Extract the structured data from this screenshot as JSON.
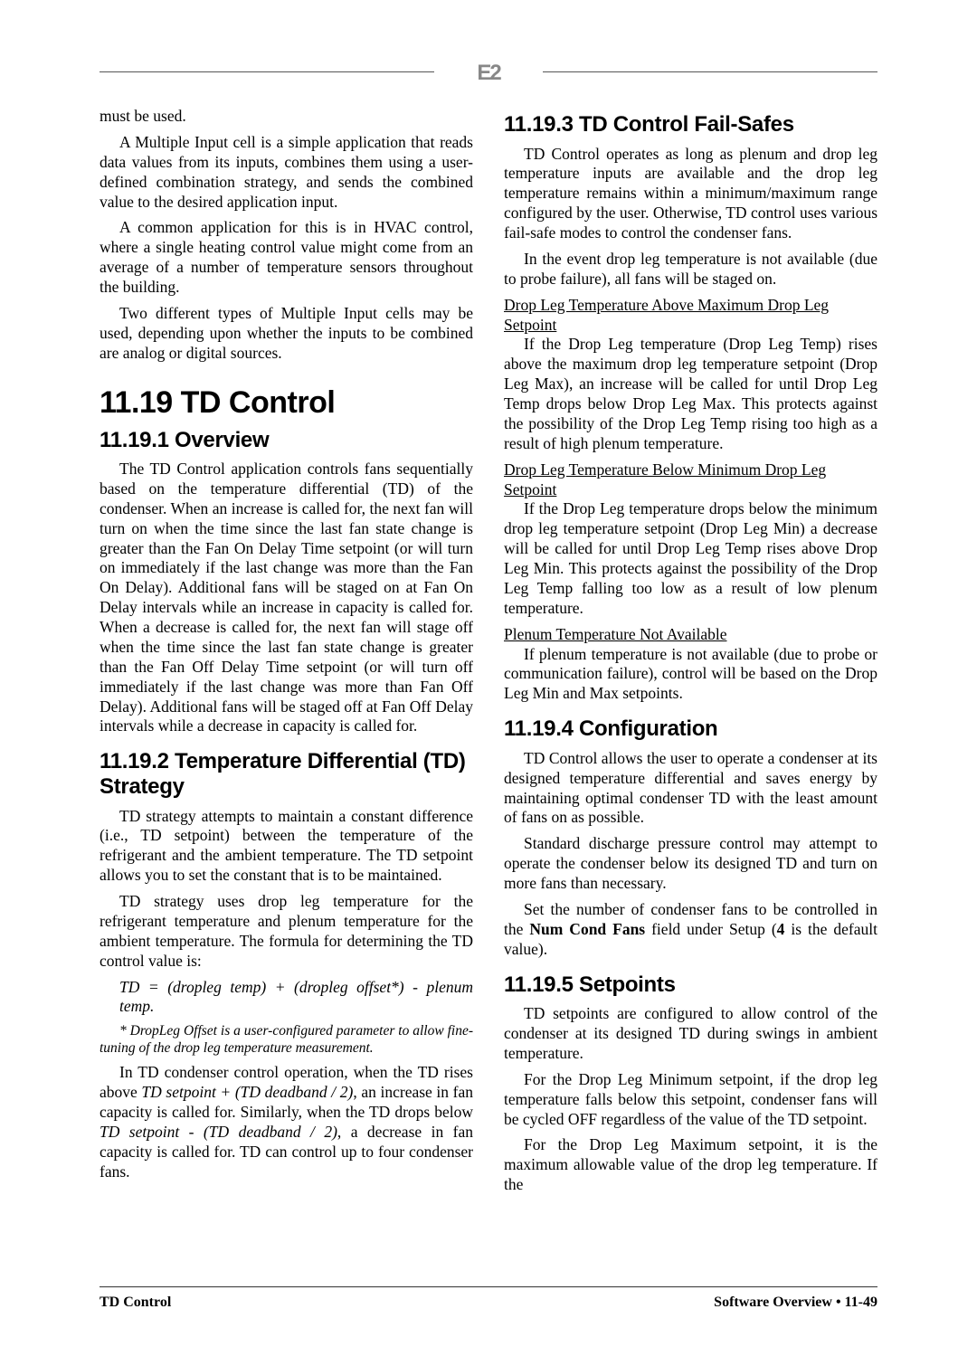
{
  "header": {
    "logo": "E2"
  },
  "left": {
    "p1": "must be used.",
    "p2": "A Multiple Input cell is a simple application that reads data values from its inputs, combines them using a user-defined combination strategy, and sends the combined value to the desired application input.",
    "p3": "A common application for this is in HVAC control, where a single heating control value might come from an average of a number of temperature sensors throughout the building.",
    "p4": "Two different types of Multiple Input cells may be used, depending upon whether the inputs to be combined are analog or digital sources.",
    "h1": "11.19 TD Control",
    "h2_1": "11.19.1 Overview",
    "p5": "The TD Control application controls fans sequentially based on the temperature differential (TD) of the condenser. When an increase is called for, the next fan will turn on when the time since the last fan state change is greater than the Fan On Delay Time setpoint (or will turn on immediately if the last change was more than the Fan On Delay). Additional fans will be staged on at Fan On Delay intervals while an increase in capacity is called for. When a decrease is called for, the next fan will stage off when the time since the last fan state change is greater than the Fan Off Delay Time setpoint (or will turn off immediately if the last change was more than Fan Off Delay). Additional fans will be staged off at Fan Off Delay intervals while a decrease in capacity is called for.",
    "h2_2": "11.19.2 Temperature Differential (TD) Strategy",
    "p6": "TD strategy attempts to maintain a constant difference (i.e., TD setpoint) between the temperature of the refrigerant and the ambient temperature. The TD setpoint allows you to set the constant that is to be maintained.",
    "p7": "TD strategy uses drop leg temperature for the refrigerant temperature and plenum temperature for the ambient temperature. The formula for determining the TD control value is:",
    "p8_pre": "TD = (dropleg temp) + (dropleg offset*) - plenum temp.",
    "p9_footnote": "* DropLeg Offset is a user-configured parameter to allow fine-tuning of the drop leg temperature measurement.",
    "p10_a": " In TD condenser control operation, when the TD rises above ",
    "p10_b": "TD setpoint + (TD deadband / 2)",
    "p10_c": ", an increase in fan capacity is called for. Similarly, when the TD drops below ",
    "p10_d": "TD setpoint - (TD deadband / 2)",
    "p10_e": ", a decrease in fan capacity is called for. TD can control up to four condenser fans."
  },
  "right": {
    "h2_3": "11.19.3 TD Control Fail-Safes",
    "p11": "TD Control operates as long as plenum and drop leg temperature inputs are available and the drop leg temperature remains within a minimum/maximum range configured by the user. Otherwise, TD control uses various fail-safe modes to control the condenser fans.",
    "p12": "In the event drop leg temperature is not available (due to probe failure), all fans will be staged on.",
    "sub1": "Drop Leg Temperature Above Maximum Drop Leg Setpoint",
    "p13": "If the Drop Leg temperature (Drop Leg Temp) rises above the maximum drop leg temperature setpoint (Drop Leg Max), an increase will be called for until Drop Leg Temp drops below Drop Leg Max. This protects against the possibility of the Drop Leg Temp rising too high as a result of high plenum temperature.",
    "sub2": "Drop Leg Temperature Below Minimum Drop Leg Setpoint",
    "p14": "If the Drop Leg temperature drops below the minimum drop leg temperature setpoint (Drop Leg Min) a decrease will be called for until Drop Leg Temp rises above Drop Leg Min. This protects against the possibility of the Drop Leg Temp falling too low as a result of low plenum temperature.",
    "sub3": "Plenum Temperature Not Available",
    "p15": "If plenum temperature is not available (due to probe or communication failure), control will be based on the Drop Leg Min and Max setpoints.",
    "h2_4": "11.19.4 Configuration",
    "p16": "TD Control allows the user to operate a condenser at its designed temperature differential and saves energy by maintaining optimal condenser TD with the least amount of fans on as possible.",
    "p17": "Standard discharge pressure control may attempt to operate the condenser below its designed TD and turn on more fans than necessary.",
    "p18_a": "Set the number of condenser fans to be controlled in the ",
    "p18_b": "Num Cond Fans",
    "p18_c": " field under Setup (",
    "p18_d": "4",
    "p18_e": " is the default value).",
    "h2_5": "11.19.5 Setpoints",
    "p19": "TD setpoints are configured to allow control of the condenser at its designed TD during swings in ambient temperature.",
    "p20": "For the Drop Leg Minimum setpoint, if the drop leg temperature falls below this setpoint, condenser fans will be cycled OFF regardless of the value of the TD setpoint.",
    "p21": "For the Drop Leg Maximum setpoint, it is the maximum allowable value of the drop leg temperature. If the"
  },
  "footer": {
    "left": "TD Control",
    "right": "Software Overview • 11-49"
  }
}
